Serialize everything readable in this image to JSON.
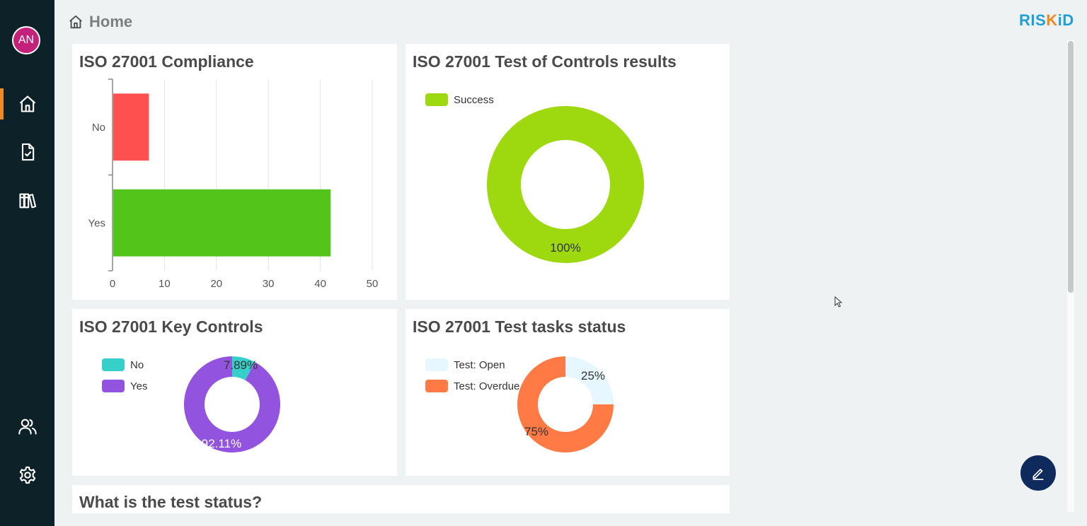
{
  "header": {
    "title": "Home"
  },
  "logo": {
    "part1": "RIS",
    "part2": "K",
    "part3": "iD"
  },
  "user": {
    "initials": "AN"
  },
  "sidebar": {
    "items": [
      "home-icon",
      "task-check-icon",
      "library-icon",
      "users-icon",
      "gear-icon"
    ]
  },
  "colors": {
    "sidebar": "#0d2128",
    "accent": "#f08a24",
    "avatar": "#c4217a",
    "fab": "#0f2a5c"
  },
  "cards": {
    "compliance": {
      "title": "ISO 27001 Compliance"
    },
    "test_controls": {
      "title": "ISO 27001 Test of Controls results",
      "legend": [
        "Success"
      ]
    },
    "key_controls": {
      "title": "ISO 27001 Key Controls",
      "legend": [
        "No",
        "Yes"
      ]
    },
    "test_tasks": {
      "title": "ISO 27001 Test tasks status",
      "legend": [
        "Test: Open",
        "Test: Overdue"
      ]
    },
    "test_status": {
      "title": "What is the test status?"
    }
  },
  "chart_data": [
    {
      "type": "bar",
      "orientation": "horizontal",
      "title": "ISO 27001 Compliance",
      "categories": [
        "No",
        "Yes"
      ],
      "values": [
        7,
        42
      ],
      "colors": [
        "#ff5050",
        "#52c41a"
      ],
      "xlim": [
        0,
        50
      ],
      "xticks": [
        "0",
        "10",
        "20",
        "30",
        "40",
        "50"
      ],
      "grid": true
    },
    {
      "type": "pie",
      "donut": true,
      "title": "ISO 27001 Test of Controls results",
      "labels": [
        "Success"
      ],
      "values": [
        100
      ],
      "colors": [
        "#9ed80e"
      ],
      "data_labels": [
        "100%"
      ],
      "legend": "top-left"
    },
    {
      "type": "pie",
      "donut": true,
      "title": "ISO 27001 Key Controls",
      "labels": [
        "No",
        "Yes"
      ],
      "values": [
        7.89,
        92.11
      ],
      "colors": [
        "#36cfc9",
        "#9254de"
      ],
      "data_labels": [
        "7.89%",
        "92.11%"
      ],
      "legend": "left"
    },
    {
      "type": "pie",
      "donut": true,
      "title": "ISO 27001 Test tasks status",
      "labels": [
        "Test: Open",
        "Test: Overdue"
      ],
      "values": [
        25,
        75
      ],
      "colors": [
        "#e6f7ff",
        "#ff7a45"
      ],
      "data_labels": [
        "25%",
        "75%"
      ],
      "legend": "left"
    }
  ]
}
